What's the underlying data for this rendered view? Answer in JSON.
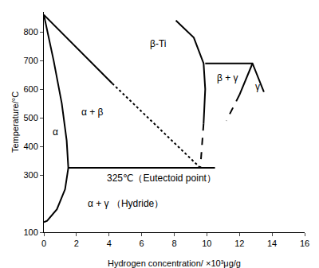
{
  "chart_data": {
    "type": "line",
    "xlabel": "Hydrogen concentration/ ×10³μg/g",
    "ylabel": "Temperature/°C",
    "xlim": [
      0,
      16
    ],
    "xticks": [
      0,
      2,
      4,
      6,
      8,
      10,
      12,
      14,
      16
    ],
    "ylim": [
      100,
      870
    ],
    "yticks": [
      100,
      300,
      400,
      500,
      600,
      700,
      800
    ],
    "grid": false,
    "color": "#000000",
    "series": [
      {
        "x": [
          0,
          0.6,
          1.1,
          1.4,
          1.5,
          1.3,
          0.8,
          0.2,
          0
        ],
        "values": [
          860,
          700,
          550,
          420,
          325,
          250,
          180,
          140,
          135
        ],
        "line_style": "solid"
      },
      {
        "x": [
          0,
          4.2
        ],
        "values": [
          860,
          620
        ],
        "line_style": "solid"
      },
      {
        "x": [
          4.2,
          9.6
        ],
        "values": [
          620,
          325
        ],
        "line_style": "dot"
      },
      {
        "x": [
          8.1,
          9.2,
          9.8,
          9.9,
          9.8
        ],
        "values": [
          840,
          780,
          690,
          600,
          480
        ],
        "line_style": "solid"
      },
      {
        "x": [
          9.8,
          9.7,
          9.6
        ],
        "values": [
          480,
          400,
          325
        ],
        "line_style": "dash"
      },
      {
        "x": [
          9.9,
          12.8,
          13.5
        ],
        "values": [
          690,
          690,
          590
        ],
        "line_style": "solid"
      },
      {
        "x": [
          12.8,
          12.0
        ],
        "values": [
          690,
          580
        ],
        "line_style": "solid"
      },
      {
        "x": [
          12.0,
          11.2
        ],
        "values": [
          580,
          490
        ],
        "line_style": "dash"
      },
      {
        "x": [
          1.5,
          10.5
        ],
        "values": [
          325,
          325
        ],
        "line_style": "solid"
      }
    ],
    "annotations": [
      {
        "text": "β-Ti",
        "x": 7,
        "y": 760
      },
      {
        "text": "α + β",
        "x": 3,
        "y": 520
      },
      {
        "text": "α",
        "x": 0.7,
        "y": 450
      },
      {
        "text": "β + γ",
        "x": 11.3,
        "y": 640
      },
      {
        "text": "γ",
        "x": 13.1,
        "y": 610
      },
      {
        "text": "325℃（Eutectoid point）",
        "x": 7.2,
        "y": 290
      },
      {
        "text": "α + γ （Hydride）",
        "x": 5,
        "y": 200
      }
    ]
  }
}
